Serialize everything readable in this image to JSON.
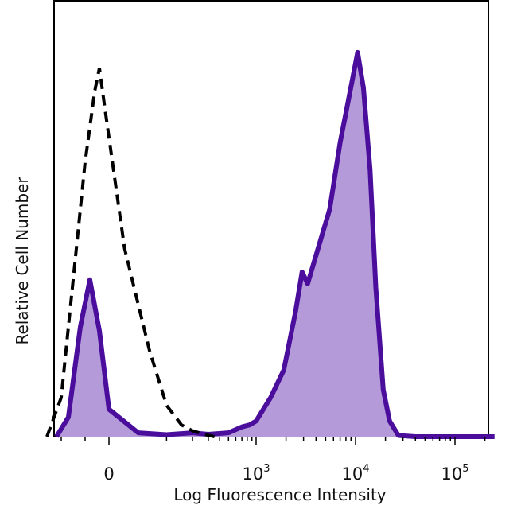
{
  "chart_data": {
    "type": "area",
    "title": "",
    "xlabel": "Log Fluorescence Intensity",
    "ylabel": "Relative Cell Number",
    "x_scale": "biexponential",
    "xlim": [
      -300,
      250000
    ],
    "ylim": [
      0,
      100
    ],
    "grid": false,
    "legend": "none",
    "x_ticks": [
      {
        "value": 0,
        "base": "0",
        "exp": ""
      },
      {
        "value": 1000,
        "base": "10",
        "exp": "3"
      },
      {
        "value": 10000,
        "base": "10",
        "exp": "4"
      },
      {
        "value": 100000,
        "base": "10",
        "exp": "5"
      }
    ],
    "colors": {
      "stained_line": "#4a0d9c",
      "stained_fill": "#b49ad9",
      "control_line": "#000000"
    },
    "series": [
      {
        "style": "solid-filled",
        "points": [
          [
            -220,
            0
          ],
          [
            -170,
            5
          ],
          [
            -120,
            28
          ],
          [
            -80,
            40
          ],
          [
            -40,
            27
          ],
          [
            0,
            7
          ],
          [
            40,
            1
          ],
          [
            100,
            0.5
          ],
          [
            200,
            1
          ],
          [
            300,
            0.6
          ],
          [
            500,
            1
          ],
          [
            700,
            2.5
          ],
          [
            850,
            3
          ],
          [
            1000,
            4
          ],
          [
            1400,
            10
          ],
          [
            1900,
            17
          ],
          [
            2500,
            32
          ],
          [
            2900,
            42
          ],
          [
            3300,
            39
          ],
          [
            4200,
            48
          ],
          [
            5500,
            58
          ],
          [
            7000,
            75
          ],
          [
            8500,
            86
          ],
          [
            10500,
            98
          ],
          [
            12000,
            89
          ],
          [
            14000,
            68
          ],
          [
            16000,
            38
          ],
          [
            19000,
            12
          ],
          [
            22000,
            4
          ],
          [
            27000,
            0.3
          ],
          [
            40000,
            0
          ],
          [
            250000,
            0
          ]
        ]
      },
      {
        "style": "dashed-outline",
        "points": [
          [
            -260,
            0
          ],
          [
            -200,
            10
          ],
          [
            -150,
            40
          ],
          [
            -100,
            70
          ],
          [
            -60,
            88
          ],
          [
            -40,
            94
          ],
          [
            -20,
            85
          ],
          [
            20,
            48
          ],
          [
            60,
            22
          ],
          [
            100,
            8
          ],
          [
            150,
            3
          ],
          [
            200,
            1.5
          ],
          [
            280,
            0.5
          ],
          [
            350,
            0
          ]
        ]
      }
    ]
  }
}
